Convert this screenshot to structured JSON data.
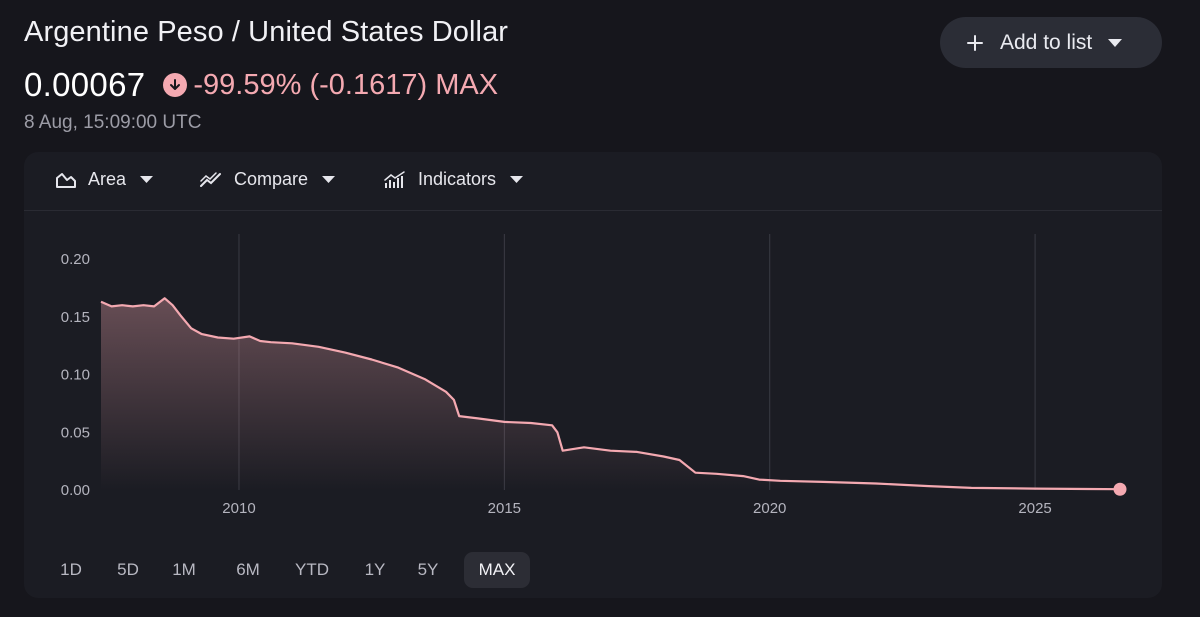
{
  "header": {
    "title": "Argentine Peso / United States Dollar",
    "price": "0.00067",
    "change_icon": "arrow-down-circle-icon",
    "change": "-99.59% (-0.1617) MAX",
    "timestamp": "8 Aug, 15:09:00 UTC"
  },
  "actions": {
    "add_to_list_label": "Add to list",
    "add_icon": "plus-icon",
    "caret_icon": "chevron-down-icon"
  },
  "toolbar": {
    "area_label": "Area",
    "compare_label": "Compare",
    "indicators_label": "Indicators"
  },
  "ranges": {
    "items": [
      "1D",
      "5D",
      "1M",
      "6M",
      "YTD",
      "1Y",
      "5Y",
      "MAX"
    ],
    "selected": "MAX"
  },
  "colors": {
    "line": "#f4a9b1",
    "negative": "#f4a9b1",
    "background": "#16161c",
    "card": "#1b1c23"
  },
  "chart_data": {
    "type": "area",
    "title": "",
    "xlabel": "",
    "ylabel": "",
    "ylim": [
      0,
      0.2
    ],
    "xlim": [
      2007.4,
      2026.6
    ],
    "yticks": [
      "0.00",
      "0.05",
      "0.10",
      "0.15",
      "0.20"
    ],
    "xticks": [
      "2010",
      "2015",
      "2020",
      "2025"
    ],
    "grid": "vertical lines at year ticks",
    "series": [
      {
        "x": [
          2007.4,
          2007.6,
          2007.8,
          2008.0,
          2008.2,
          2008.4,
          2008.6,
          2008.75,
          2008.9,
          2009.1,
          2009.3,
          2009.6,
          2009.9,
          2010.2,
          2010.4,
          2010.6,
          2011.0,
          2011.5,
          2012.0,
          2012.5,
          2013.0,
          2013.5,
          2013.9,
          2014.05,
          2014.15,
          2014.5,
          2015.0,
          2015.5,
          2015.9,
          2016.0,
          2016.1,
          2016.5,
          2017.0,
          2017.5,
          2018.0,
          2018.3,
          2018.6,
          2019.0,
          2019.5,
          2019.8,
          2020.2,
          2021.0,
          2022.0,
          2023.0,
          2023.8,
          2025.0,
          2026.0,
          2026.6
        ],
        "y": [
          0.163,
          0.159,
          0.16,
          0.159,
          0.16,
          0.159,
          0.166,
          0.16,
          0.151,
          0.14,
          0.135,
          0.132,
          0.131,
          0.133,
          0.129,
          0.128,
          0.127,
          0.124,
          0.119,
          0.113,
          0.106,
          0.096,
          0.085,
          0.078,
          0.064,
          0.062,
          0.059,
          0.058,
          0.056,
          0.05,
          0.034,
          0.037,
          0.034,
          0.033,
          0.029,
          0.026,
          0.015,
          0.014,
          0.012,
          0.009,
          0.008,
          0.007,
          0.0056,
          0.0034,
          0.0018,
          0.0012,
          0.0009,
          0.00067
        ]
      }
    ]
  }
}
